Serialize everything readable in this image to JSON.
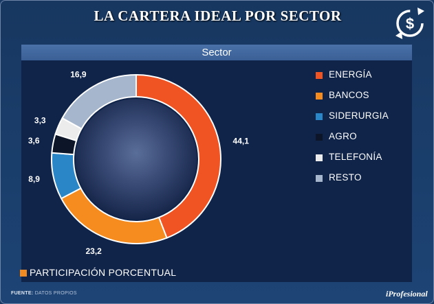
{
  "header": {
    "title": "LA CARTERA IDEAL POR SECTOR",
    "icon": "dollar-refresh-icon"
  },
  "chart_data": {
    "type": "pie",
    "title": "Sector",
    "categories": [
      "ENERGÍA",
      "BANCOS",
      "SIDERURGIA",
      "AGRO",
      "TELEFONÍA",
      "RESTO"
    ],
    "values": [
      44.1,
      23.2,
      8.9,
      3.6,
      3.3,
      16.9
    ],
    "value_labels": [
      "44,1",
      "23,2",
      "8,9",
      "3,6",
      "3,3",
      "16,9"
    ],
    "colors": [
      "#f05423",
      "#f68c1f",
      "#2b86c8",
      "#0c1628",
      "#ececec",
      "#a6b6cc"
    ],
    "legend_placement": "right",
    "series_label": "PARTICIPACIÓN PORCENTUAL",
    "series_color": "#f08a22"
  },
  "footer": {
    "source_label": "FUENTE:",
    "source_text": "DATOS PROPIOS",
    "brand": "iProfesional"
  }
}
